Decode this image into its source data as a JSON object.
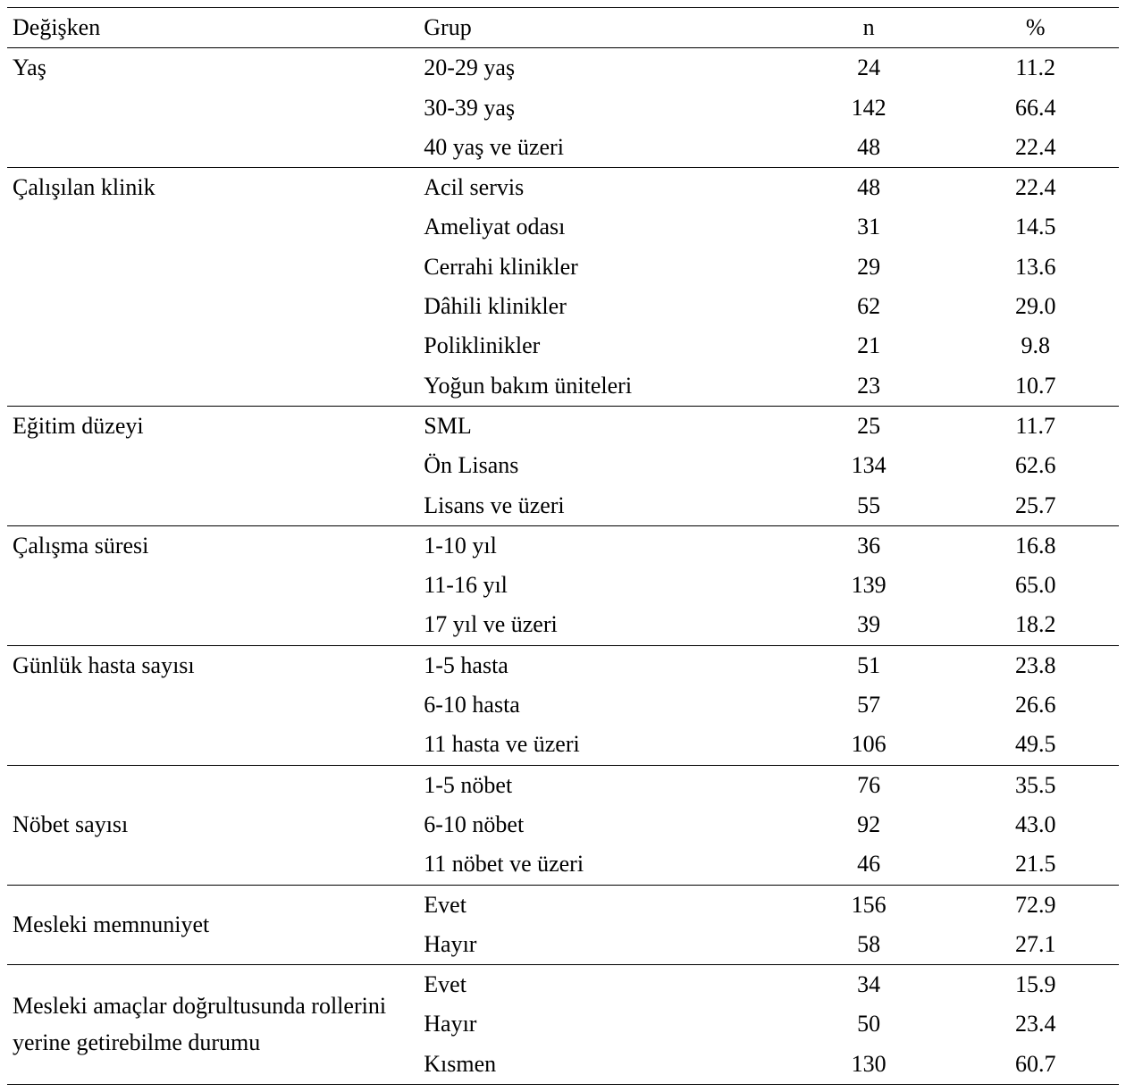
{
  "type": "table",
  "background_color": "#ffffff",
  "text_color": "#000000",
  "border_color": "#000000",
  "font_family": "Times New Roman",
  "font_size_pt": 20,
  "columns": {
    "variable": {
      "label": "Değişken",
      "align": "left",
      "width_pct": 37
    },
    "group": {
      "label": "Grup",
      "align": "left",
      "width_pct": 33
    },
    "n": {
      "label": "n",
      "align": "center",
      "width_pct": 15
    },
    "pct": {
      "label": "%",
      "align": "center",
      "width_pct": 15
    }
  },
  "sections": [
    {
      "variable": "Yaş",
      "variable_valign": "top",
      "rows": [
        {
          "group": "20-29 yaş",
          "n": "24",
          "pct": "11.2"
        },
        {
          "group": "30-39 yaş",
          "n": "142",
          "pct": "66.4"
        },
        {
          "group": "40 yaş ve üzeri",
          "n": "48",
          "pct": "22.4"
        }
      ]
    },
    {
      "variable": "Çalışılan klinik",
      "variable_valign": "top",
      "rows": [
        {
          "group": "Acil servis",
          "n": "48",
          "pct": "22.4"
        },
        {
          "group": "Ameliyat odası",
          "n": "31",
          "pct": "14.5"
        },
        {
          "group": "Cerrahi klinikler",
          "n": "29",
          "pct": "13.6"
        },
        {
          "group": "Dâhili klinikler",
          "n": "62",
          "pct": "29.0"
        },
        {
          "group": "Poliklinikler",
          "n": "21",
          "pct": "9.8"
        },
        {
          "group": "Yoğun bakım üniteleri",
          "n": "23",
          "pct": "10.7"
        }
      ]
    },
    {
      "variable": "Eğitim düzeyi",
      "variable_valign": "top",
      "rows": [
        {
          "group": "SML",
          "n": "25",
          "pct": "11.7"
        },
        {
          "group": "Ön Lisans",
          "n": "134",
          "pct": "62.6"
        },
        {
          "group": "Lisans ve üzeri",
          "n": "55",
          "pct": "25.7"
        }
      ]
    },
    {
      "variable": "Çalışma süresi",
      "variable_valign": "top",
      "rows": [
        {
          "group": "1-10 yıl",
          "n": "36",
          "pct": "16.8"
        },
        {
          "group": "11-16 yıl",
          "n": "139",
          "pct": "65.0"
        },
        {
          "group": "17 yıl ve üzeri",
          "n": "39",
          "pct": "18.2"
        }
      ]
    },
    {
      "variable": "Günlük hasta sayısı",
      "variable_valign": "top",
      "rows": [
        {
          "group": "1-5 hasta",
          "n": "51",
          "pct": "23.8"
        },
        {
          "group": "6-10 hasta",
          "n": "57",
          "pct": "26.6"
        },
        {
          "group": "11 hasta ve üzeri",
          "n": "106",
          "pct": "49.5"
        }
      ]
    },
    {
      "variable": "Nöbet sayısı",
      "variable_valign": "middle",
      "rows": [
        {
          "group": "1-5 nöbet",
          "n": "76",
          "pct": "35.5"
        },
        {
          "group": "6-10 nöbet",
          "n": "92",
          "pct": "43.0"
        },
        {
          "group": "11 nöbet ve üzeri",
          "n": "46",
          "pct": "21.5"
        }
      ]
    },
    {
      "variable": "Mesleki memnuniyet",
      "variable_valign": "middle",
      "rows": [
        {
          "group": "Evet",
          "n": "156",
          "pct": "72.9"
        },
        {
          "group": "Hayır",
          "n": "58",
          "pct": "27.1"
        }
      ]
    },
    {
      "variable": "Mesleki amaçlar doğrultusunda rollerini yerine getirebilme durumu",
      "variable_valign": "middle",
      "rows": [
        {
          "group": "Evet",
          "n": "34",
          "pct": "15.9"
        },
        {
          "group": "Hayır",
          "n": "50",
          "pct": "23.4"
        },
        {
          "group": "Kısmen",
          "n": "130",
          "pct": "60.7"
        }
      ]
    }
  ]
}
